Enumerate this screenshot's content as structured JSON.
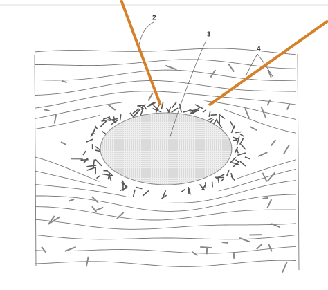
{
  "labels": [
    "2",
    "3",
    "4"
  ]
}
